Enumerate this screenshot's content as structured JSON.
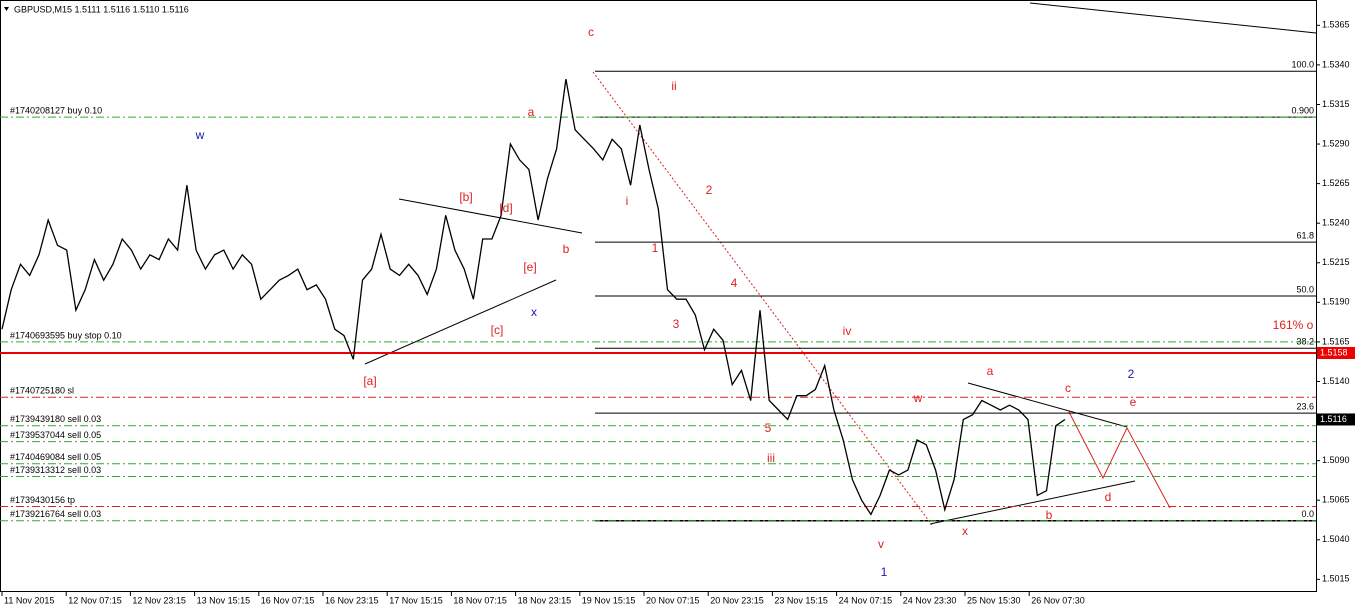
{
  "chart_data": {
    "type": "line",
    "title": "GBPUSD,M15  1.5111 1.5116 1.5110 1.5116",
    "x_labels": [
      "11 Nov 2015",
      "12 Nov 07:15",
      "12 Nov 23:15",
      "13 Nov 15:15",
      "16 Nov 07:15",
      "16 Nov 23:15",
      "17 Nov 15:15",
      "18 Nov 07:15",
      "18 Nov 23:15",
      "19 Nov 15:15",
      "20 Nov 07:15",
      "20 Nov 23:15",
      "23 Nov 15:15",
      "24 Nov 07:15",
      "24 Nov 23:30",
      "25 Nov 15:30",
      "26 Nov 07:30"
    ],
    "series": [
      {
        "name": "GBPUSD",
        "color": "#000000",
        "values": [
          1.5173,
          1.5198,
          1.5214,
          1.5207,
          1.522,
          1.5242,
          1.5226,
          1.5223,
          1.5185,
          1.5198,
          1.5217,
          1.5204,
          1.5214,
          1.523,
          1.5223,
          1.5211,
          1.522,
          1.5217,
          1.523,
          1.5223,
          1.5264,
          1.5223,
          1.5211,
          1.522,
          1.5223,
          1.5211,
          1.522,
          1.5214,
          1.5192,
          1.5198,
          1.5204,
          1.5207,
          1.5211,
          1.5198,
          1.5201,
          1.5192,
          1.5173,
          1.5169,
          1.5154,
          1.5204,
          1.5211,
          1.5233,
          1.5211,
          1.5207,
          1.5214,
          1.5207,
          1.5195,
          1.5211,
          1.5245,
          1.5223,
          1.5211,
          1.5192,
          1.523,
          1.523,
          1.5245,
          1.529,
          1.528,
          1.5274,
          1.5242,
          1.5268,
          1.5287,
          1.5331,
          1.5299,
          1.5293,
          1.5287,
          1.528,
          1.5293,
          1.5287,
          1.5264,
          1.5302,
          1.5274,
          1.5249,
          1.5198,
          1.5192,
          1.5192,
          1.5182,
          1.516,
          1.5173,
          1.5166,
          1.5138,
          1.5147,
          1.5128,
          1.5185,
          1.5128,
          1.5122,
          1.5116,
          1.5131,
          1.5131,
          1.5135,
          1.515,
          1.5122,
          1.5103,
          1.5078,
          1.5065,
          1.5056,
          1.5068,
          1.5084,
          1.5081,
          1.5084,
          1.5103,
          1.51,
          1.5084,
          1.5059,
          1.5078,
          1.5116,
          1.5119,
          1.5128,
          1.5125,
          1.5122,
          1.5125,
          1.5122,
          1.5116,
          1.5068,
          1.5071,
          1.5112,
          1.5116
        ]
      }
    ],
    "ylim": [
      1.5007,
      1.5381
    ],
    "yticks": [
      1.5365,
      {
        "value": 1.534,
        "label": "1.5340"
      },
      1.5315,
      {
        "value": 1.529,
        "label": "1.5290"
      },
      1.5265,
      {
        "value": 1.524,
        "label": "1.5240"
      },
      1.5215,
      {
        "value": 1.519,
        "label": "1.5190"
      },
      1.5165,
      {
        "value": 1.514,
        "label": "1.5140"
      },
      {
        "value": 1.509,
        "label": "1.5090"
      },
      1.5065,
      {
        "value": 1.504,
        "label": "1.5040"
      },
      1.5015
    ],
    "current_price": 1.5116,
    "level_price": 1.5158,
    "orders": [
      {
        "label": "#1740208127 buy 0.10",
        "price": 1.5307,
        "color": "#33aa33"
      },
      {
        "label": "#1740693595 buy stop 0.10",
        "price": 1.5165,
        "color": "#33aa33"
      },
      {
        "label": "#1740725180 sl",
        "price": 1.513,
        "color": "#dd2222"
      },
      {
        "label": "#1739439180 sell 0.03",
        "price": 1.5112,
        "color": "#33aa33"
      },
      {
        "label": "#1739537044 sell 0.05",
        "price": 1.5102,
        "color": "#33aa33"
      },
      {
        "label": "#1740469084 sell 0.05",
        "price": 1.5088,
        "color": "#33aa33"
      },
      {
        "label": "#1739313312 sell 0.03",
        "price": 1.508,
        "color": "#33aa33"
      },
      {
        "label": "#1739430156 tp",
        "price": 1.5061,
        "color": "#dd2222"
      },
      {
        "label": "#1739216764 sell 0.03",
        "price": 1.5052,
        "color": "#33aa33"
      }
    ],
    "fib_levels": [
      {
        "label": "100.0",
        "price": 1.5336
      },
      {
        "label": "0.900",
        "price": 1.5307
      },
      {
        "label": "61.8",
        "price": 1.5228
      },
      {
        "label": "50.0",
        "price": 1.5194
      },
      {
        "label": "38.2",
        "price": 1.5161
      },
      {
        "label": "23.6",
        "price": 1.512
      },
      {
        "label": "0.0",
        "price": 1.5052
      }
    ],
    "annotations": [
      "w",
      "c",
      "ii",
      "a",
      "[b]",
      "[d]",
      "b",
      "i",
      "2",
      "1",
      "[e]",
      "x",
      "[c]",
      "3",
      "4",
      "iv",
      "[a]",
      "a",
      "c",
      "2",
      "w",
      "e",
      "5",
      "iii",
      "d",
      "b",
      "x",
      "v",
      "1",
      "161% o"
    ]
  }
}
